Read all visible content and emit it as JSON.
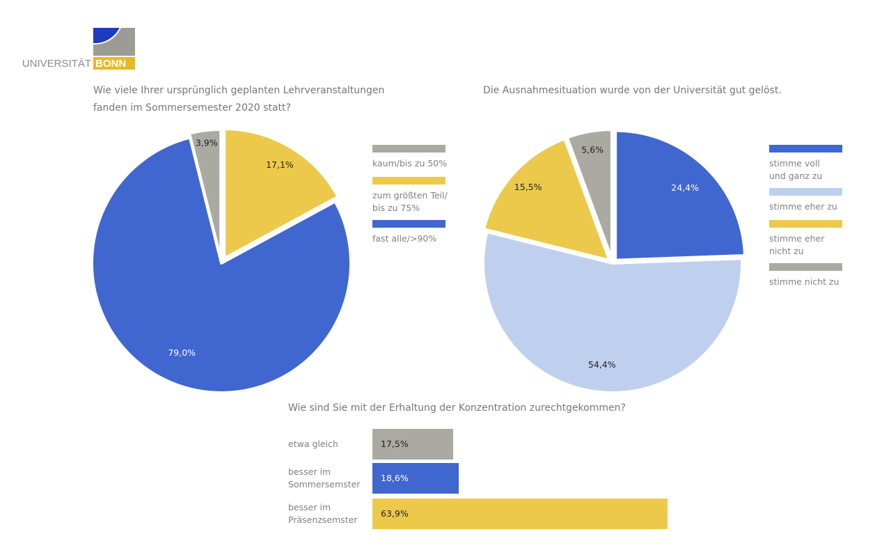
{
  "logo": {
    "text_left": "UNIVERSITÄT",
    "text_right": "BONN",
    "colors": {
      "blue": "#1f3bbd",
      "grey": "#9c9c94",
      "yellow": "#e8b923"
    }
  },
  "chart_data": [
    {
      "type": "pie",
      "title": "Wie viele Ihrer ursprünglich geplanten Lehrveranstaltungen fanden im Sommersemester 2020 statt?",
      "title_lines": [
        "Wie viele Ihrer ursprünglich geplanten Lehrveranstaltungen",
        "fanden im Sommersemester 2020 statt?"
      ],
      "slices": [
        {
          "name": "zum größten Teil/ bis zu 75%",
          "legend_lines": [
            "zum größten Teil/",
            "bis zu 75%"
          ],
          "value": 17.1,
          "label": "17,1%",
          "color": "#ecc94b"
        },
        {
          "name": "fast alle/>90%",
          "legend_lines": [
            "fast alle/>90%"
          ],
          "value": 79.0,
          "label": "79,0%",
          "color": "#4066cf"
        },
        {
          "name": "kaum/bis zu 50%",
          "legend_lines": [
            "kaum/bis zu 50%"
          ],
          "value": 3.9,
          "label": "3,9%",
          "color": "#aaa9a2"
        }
      ],
      "legend_order": [
        2,
        0,
        1
      ],
      "legend_placement": "right"
    },
    {
      "type": "pie",
      "title": "Die Ausnahmesituation wurde von der Universität gut gelöst.",
      "title_lines": [
        "Die Ausnahmesituation wurde von der Universität gut gelöst."
      ],
      "slices": [
        {
          "name": "stimme voll und ganz zu",
          "legend_lines": [
            "stimme voll",
            "und ganz zu"
          ],
          "value": 24.4,
          "label": "24,4%",
          "color": "#4066cf"
        },
        {
          "name": "stimme eher zu",
          "legend_lines": [
            "stimme eher zu"
          ],
          "value": 54.4,
          "label": "54,4%",
          "color": "#bfcfee"
        },
        {
          "name": "stimme eher nicht zu",
          "legend_lines": [
            "stimme eher",
            "nicht zu"
          ],
          "value": 15.5,
          "label": "15,5%",
          "color": "#ecc94b"
        },
        {
          "name": "stimme nicht zu",
          "legend_lines": [
            "stimme nicht zu"
          ],
          "value": 5.6,
          "label": "5,6%",
          "color": "#aaa9a2"
        }
      ],
      "legend_order": [
        0,
        1,
        2,
        3
      ],
      "legend_placement": "right"
    },
    {
      "type": "bar",
      "orientation": "horizontal",
      "title": "Wie sind Sie mit der Erhaltung der Konzentration zurechtgekommen?",
      "categories": [
        [
          "etwa gleich"
        ],
        [
          "besser im",
          "Sommersemster"
        ],
        [
          "besser im",
          "Präsenzsemster"
        ]
      ],
      "values": [
        17.5,
        18.6,
        63.9
      ],
      "labels": [
        "17,5%",
        "18,6%",
        "63,9%"
      ],
      "colors": [
        "#aaa9a2",
        "#4066cf",
        "#ecc94b"
      ],
      "xlim": [
        0,
        100
      ]
    }
  ]
}
